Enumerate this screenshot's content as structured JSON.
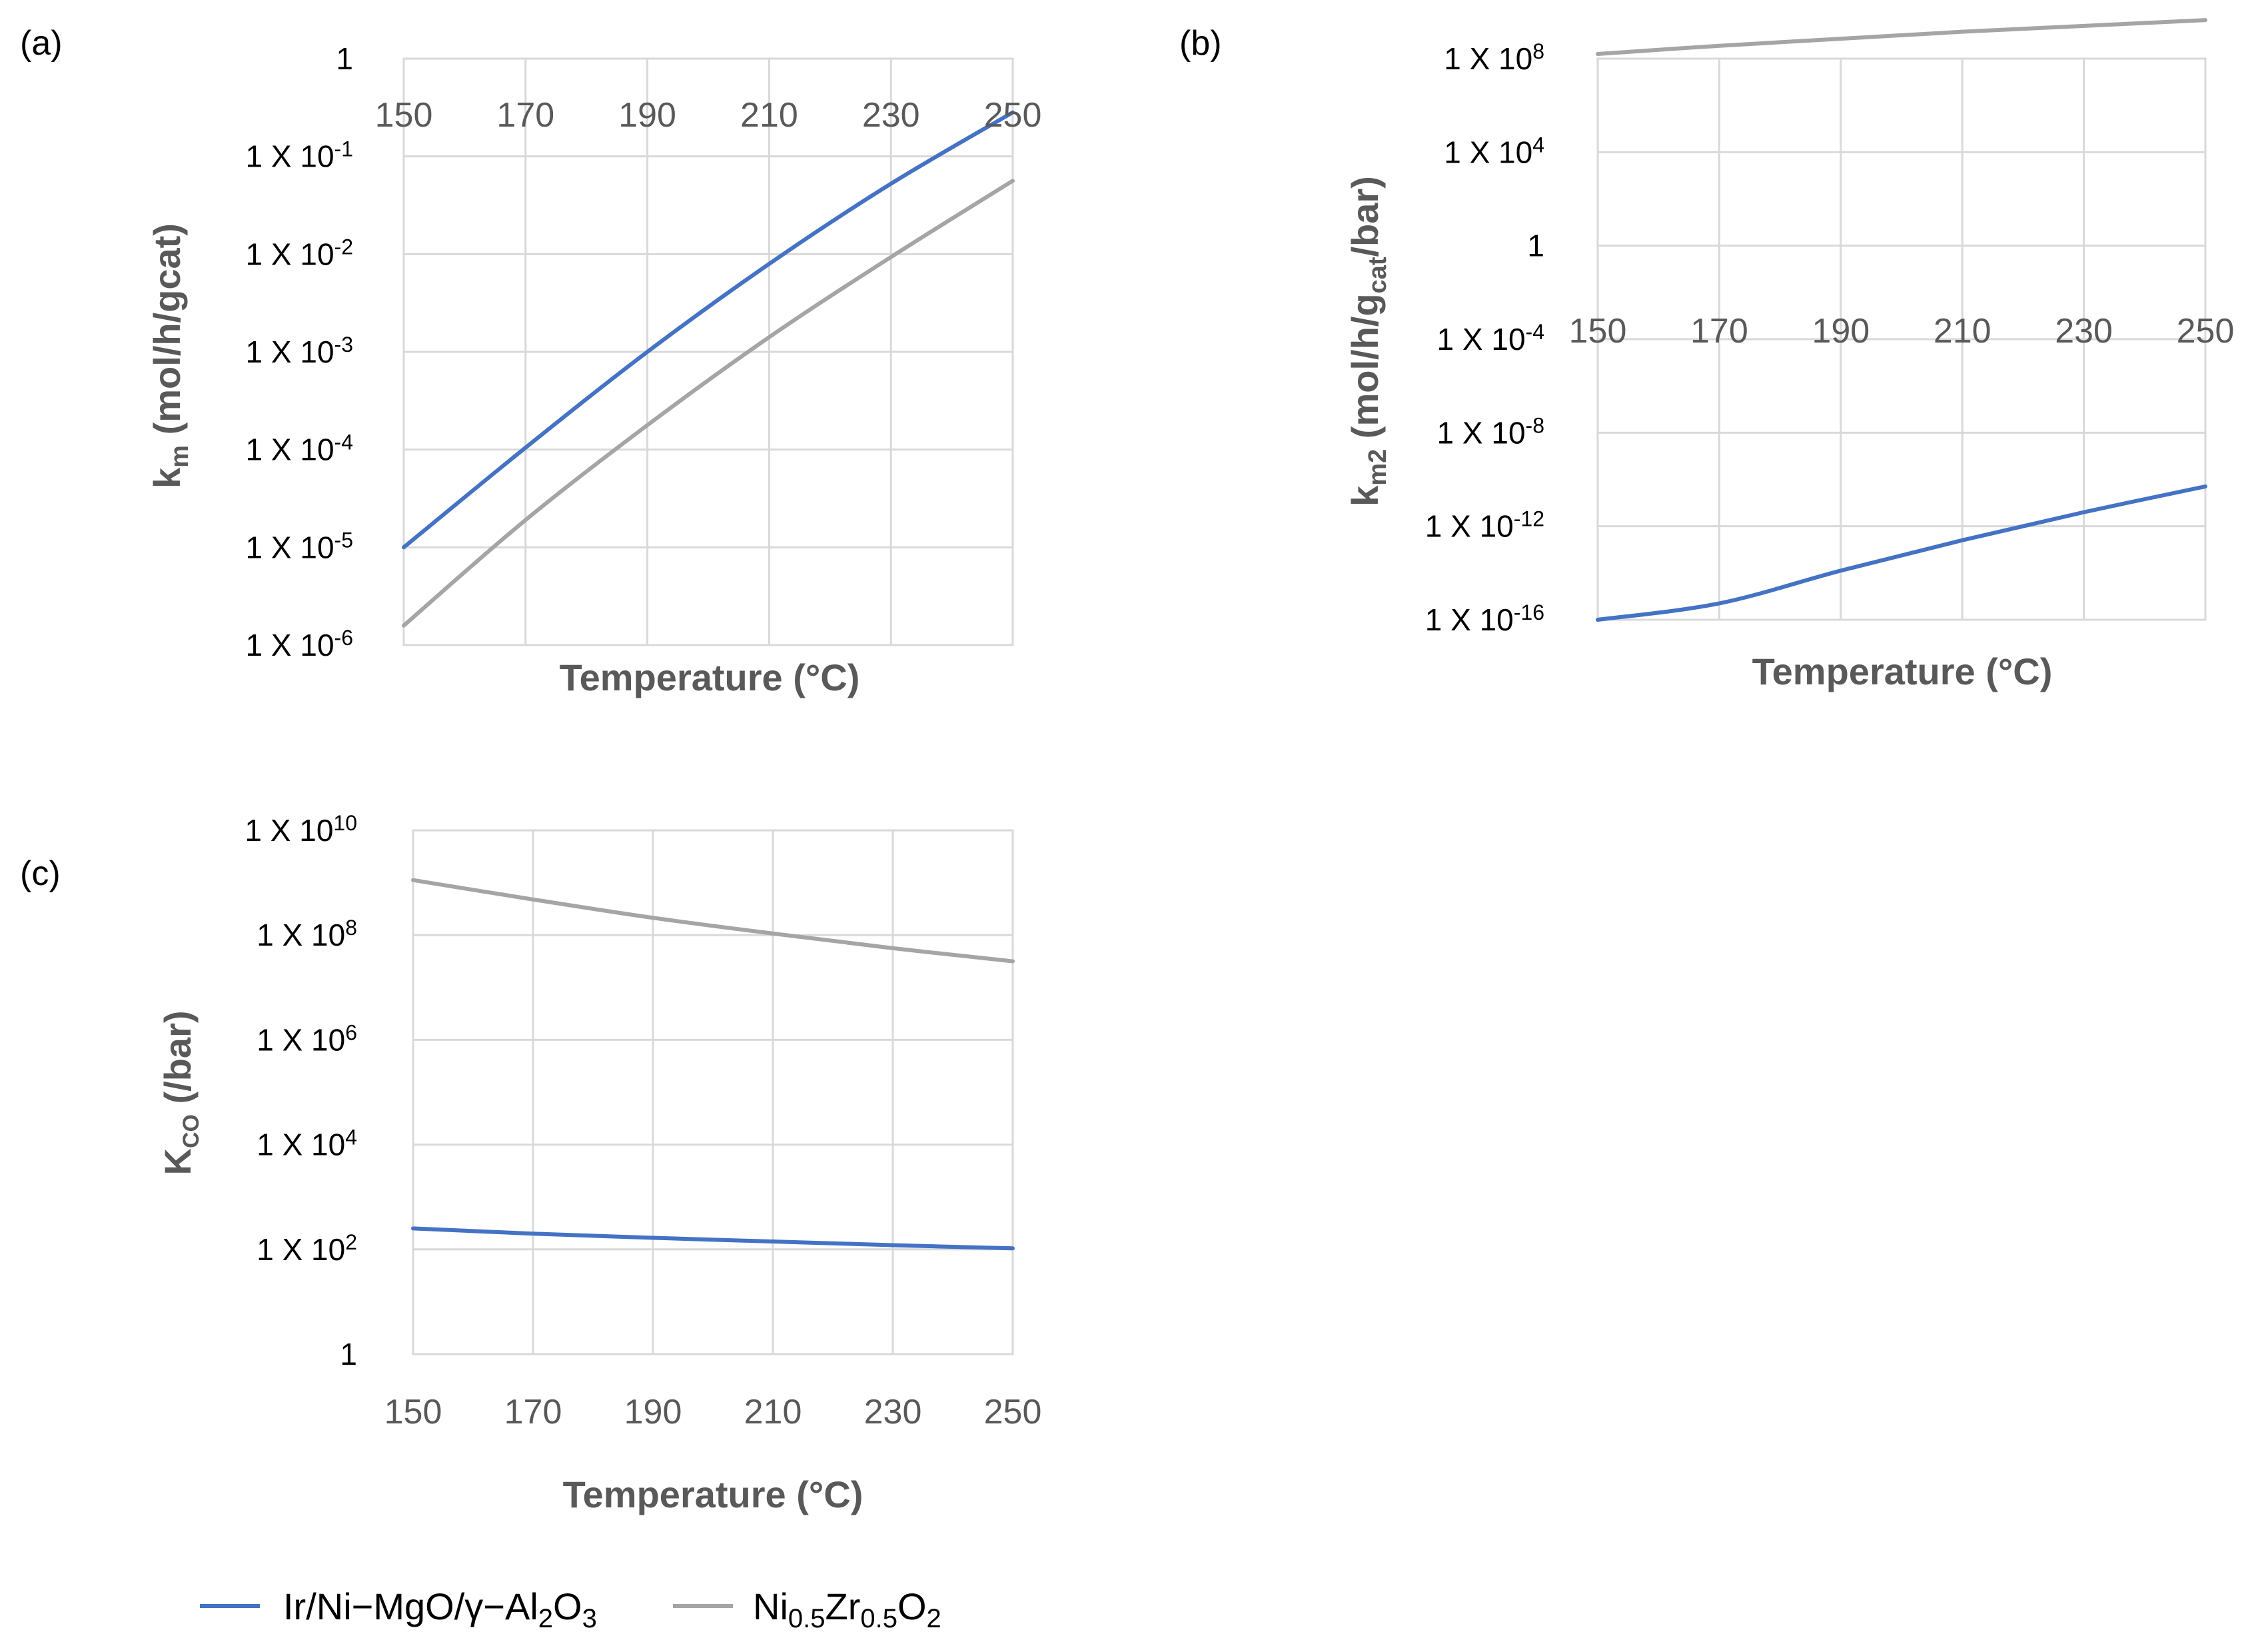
{
  "chart_data": [
    {
      "id": "a",
      "panel_label": "(a)",
      "type": "line",
      "y_scale": "log10",
      "xlim": [
        150,
        250
      ],
      "ylim_log10": [
        -6,
        0
      ],
      "x_ticks": [
        "150",
        "170",
        "190",
        "210",
        "230",
        "250"
      ],
      "y_ticks": [
        {
          "base": "1",
          "exp": ""
        },
        {
          "base": "1 X 10",
          "exp": "-1"
        },
        {
          "base": "1 X 10",
          "exp": "-2"
        },
        {
          "base": "1 X 10",
          "exp": "-3"
        },
        {
          "base": "1 X 10",
          "exp": "-4"
        },
        {
          "base": "1 X 10",
          "exp": "-5"
        },
        {
          "base": "1 X 10",
          "exp": "-6"
        }
      ],
      "ylabel": {
        "main": "k",
        "sub": "m",
        "rest": " (mol/h/gcat)"
      },
      "xlabel": "Temperature (°C)",
      "series": [
        {
          "name": "Ir/Ni−MgO/γ−Al2O3",
          "color": "#4472c4",
          "x": [
            150,
            170,
            190,
            210,
            230,
            250
          ],
          "log10_y": [
            -5.0,
            -3.98,
            -3.0,
            -2.1,
            -1.28,
            -0.55
          ]
        },
        {
          "name": "Ni0.5Zr0.5O2",
          "color": "#a5a5a5",
          "x": [
            150,
            170,
            190,
            210,
            230,
            250
          ],
          "log10_y": [
            -5.8,
            -4.72,
            -3.75,
            -2.85,
            -2.03,
            -1.25
          ]
        }
      ]
    },
    {
      "id": "b",
      "panel_label": "(b)",
      "type": "line",
      "y_scale": "log10",
      "xlim": [
        150,
        250
      ],
      "ylim_log10": [
        -16,
        8
      ],
      "x_ticks": [
        "150",
        "170",
        "190",
        "210",
        "230",
        "250"
      ],
      "y_ticks": [
        {
          "base": "1 X 10",
          "exp": "8"
        },
        {
          "base": "1 X 10",
          "exp": "4"
        },
        {
          "base": "1",
          "exp": ""
        },
        {
          "base": "1 X 10",
          "exp": "-4"
        },
        {
          "base": "1 X 10",
          "exp": "-8"
        },
        {
          "base": "1 X 10",
          "exp": "-12"
        },
        {
          "base": "1 X 10",
          "exp": "-16"
        }
      ],
      "ylabel": {
        "main": "k",
        "sub": "m2",
        "rest": " (mol/h/g",
        "sub2": "cat",
        "rest2": "/bar)"
      },
      "xlabel": "Temperature (°C)",
      "series": [
        {
          "name": "Ir/Ni−MgO/γ−Al2O3",
          "color": "#4472c4",
          "x": [
            150,
            170,
            190,
            210,
            230,
            250
          ],
          "log10_y": [
            -16.8,
            -15.3,
            -13.9,
            -12.6,
            -11.4,
            -10.3
          ]
        },
        {
          "name": "Ni0.5Zr0.5O2",
          "color": "#a5a5a5",
          "x": [
            150,
            170,
            190,
            210,
            230,
            250
          ],
          "log10_y": [
            8.2,
            8.55,
            8.85,
            9.15,
            9.4,
            9.65
          ]
        }
      ]
    },
    {
      "id": "c",
      "panel_label": "(c)",
      "type": "line",
      "y_scale": "log10",
      "xlim": [
        150,
        250
      ],
      "ylim_log10": [
        0,
        10
      ],
      "x_ticks": [
        "150",
        "170",
        "190",
        "210",
        "230",
        "250"
      ],
      "y_ticks": [
        {
          "base": "1 X 10",
          "exp": "10"
        },
        {
          "base": "1 X 10",
          "exp": "8"
        },
        {
          "base": "1 X 10",
          "exp": "6"
        },
        {
          "base": "1 X 10",
          "exp": "4"
        },
        {
          "base": "1 X 10",
          "exp": "2"
        },
        {
          "base": "1",
          "exp": ""
        }
      ],
      "ylabel": {
        "main": "K",
        "sub": "CO",
        "rest": " (/bar)"
      },
      "xlabel": "Temperature (°C)",
      "series": [
        {
          "name": "Ir/Ni−MgO/γ−Al2O3",
          "color": "#4472c4",
          "x": [
            150,
            170,
            190,
            210,
            230,
            250
          ],
          "log10_y": [
            2.4,
            2.3,
            2.22,
            2.15,
            2.08,
            2.02
          ]
        },
        {
          "name": "Ni0.5Zr0.5O2",
          "color": "#a5a5a5",
          "x": [
            150,
            170,
            190,
            210,
            230,
            250
          ],
          "log10_y": [
            9.05,
            8.68,
            8.33,
            8.03,
            7.75,
            7.5
          ]
        }
      ]
    }
  ],
  "legend": [
    {
      "main": "Ir/Ni−MgO/γ−Al",
      "sub1": "2",
      "mid": "O",
      "sub2": "3",
      "color": "#4472c4"
    },
    {
      "main": "Ni",
      "sub1": "0.5",
      "mid": "Zr",
      "sub2": "0.5",
      "tail": "O",
      "sub3": "2",
      "color": "#a5a5a5"
    }
  ]
}
